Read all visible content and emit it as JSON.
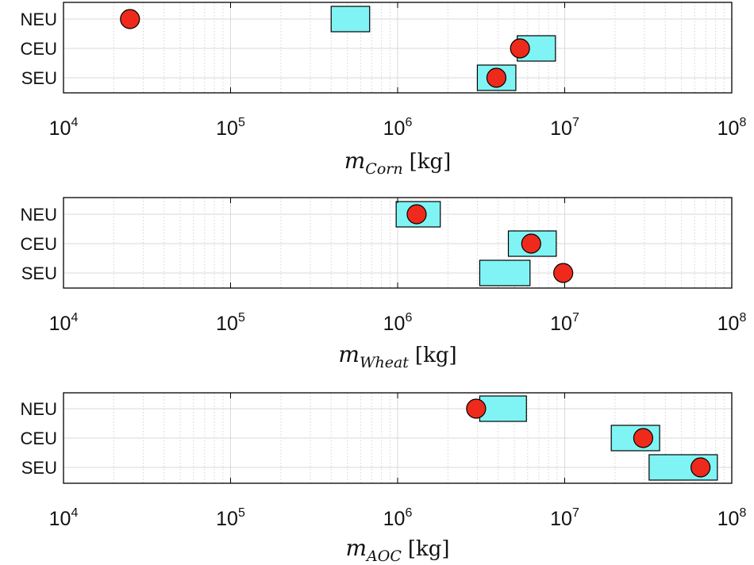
{
  "chart_data": [
    {
      "type": "range-dot",
      "x_scale": "log",
      "xlim": [
        10000,
        100000000
      ],
      "x_tick_labels": [
        {
          "base": "10",
          "exp": "4"
        },
        {
          "base": "10",
          "exp": "5"
        },
        {
          "base": "10",
          "exp": "6"
        },
        {
          "base": "10",
          "exp": "7"
        },
        {
          "base": "10",
          "exp": "8"
        }
      ],
      "categories": [
        "NEU",
        "CEU",
        "SEU"
      ],
      "grid": true,
      "xlabel": {
        "main": "m",
        "sub": "Corn",
        "unit": "[kg]"
      },
      "box_color": "#80f4f4",
      "dot_color": "#ee2a1c",
      "boxes": [
        {
          "category": "NEU",
          "low": 400000,
          "high": 680000
        },
        {
          "category": "CEU",
          "low": 5200000,
          "high": 8800000
        },
        {
          "category": "SEU",
          "low": 3000000,
          "high": 5100000
        }
      ],
      "points": [
        {
          "category": "NEU",
          "value": 25000
        },
        {
          "category": "CEU",
          "value": 5400000
        },
        {
          "category": "SEU",
          "value": 3900000
        }
      ]
    },
    {
      "type": "range-dot",
      "x_scale": "log",
      "xlim": [
        10000,
        100000000
      ],
      "x_tick_labels": [
        {
          "base": "10",
          "exp": "4"
        },
        {
          "base": "10",
          "exp": "5"
        },
        {
          "base": "10",
          "exp": "6"
        },
        {
          "base": "10",
          "exp": "7"
        },
        {
          "base": "10",
          "exp": "8"
        }
      ],
      "categories": [
        "NEU",
        "CEU",
        "SEU"
      ],
      "grid": true,
      "xlabel": {
        "main": "m",
        "sub": "Wheat",
        "unit": "[kg]"
      },
      "box_color": "#80f4f4",
      "dot_color": "#ee2a1c",
      "boxes": [
        {
          "category": "NEU",
          "low": 980000,
          "high": 1800000
        },
        {
          "category": "CEU",
          "low": 4600000,
          "high": 8900000
        },
        {
          "category": "SEU",
          "low": 3100000,
          "high": 6200000
        }
      ],
      "points": [
        {
          "category": "NEU",
          "value": 1300000
        },
        {
          "category": "CEU",
          "value": 6300000
        },
        {
          "category": "SEU",
          "value": 9800000
        }
      ]
    },
    {
      "type": "range-dot",
      "x_scale": "log",
      "xlim": [
        10000,
        100000000
      ],
      "x_tick_labels": [
        {
          "base": "10",
          "exp": "4"
        },
        {
          "base": "10",
          "exp": "5"
        },
        {
          "base": "10",
          "exp": "6"
        },
        {
          "base": "10",
          "exp": "7"
        },
        {
          "base": "10",
          "exp": "8"
        }
      ],
      "categories": [
        "NEU",
        "CEU",
        "SEU"
      ],
      "grid": true,
      "xlabel": {
        "main": "m",
        "sub": "AOC",
        "unit": "[kg]"
      },
      "box_color": "#80f4f4",
      "dot_color": "#ee2a1c",
      "boxes": [
        {
          "category": "NEU",
          "low": 3100000,
          "high": 5900000
        },
        {
          "category": "CEU",
          "low": 19000000,
          "high": 37000000
        },
        {
          "category": "SEU",
          "low": 32000000,
          "high": 82000000
        }
      ],
      "points": [
        {
          "category": "NEU",
          "value": 2950000
        },
        {
          "category": "CEU",
          "value": 29500000
        },
        {
          "category": "SEU",
          "value": 65000000
        }
      ]
    }
  ]
}
